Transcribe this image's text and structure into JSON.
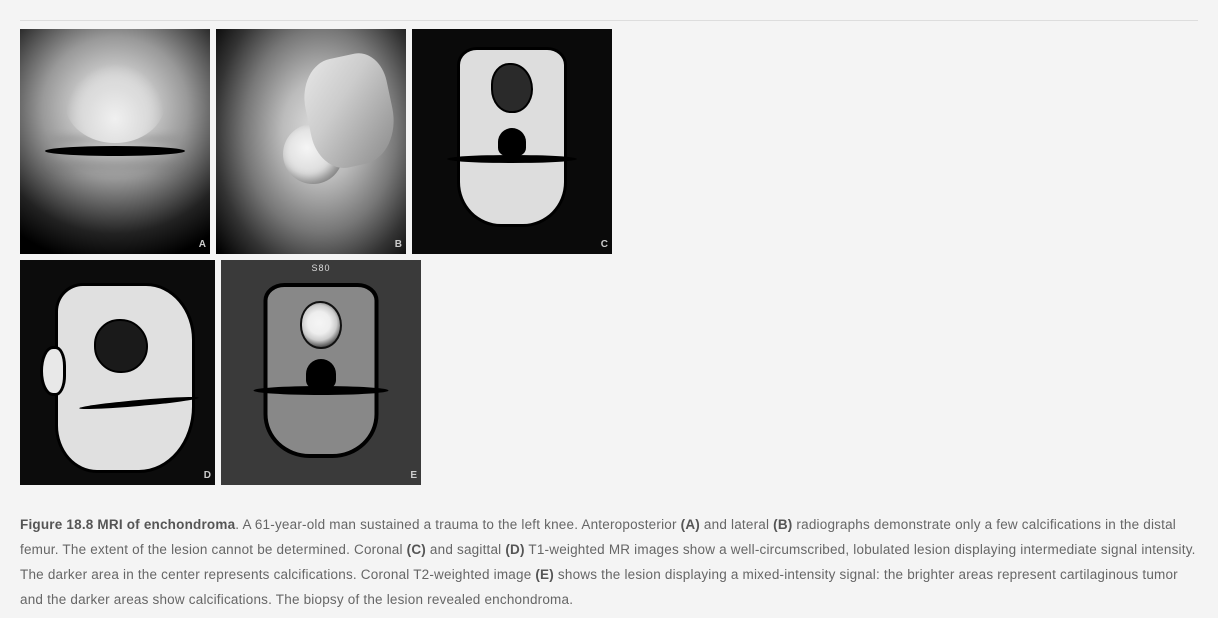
{
  "figure": {
    "title_bold": "Figure 18.8 MRI of enchondroma",
    "panels": {
      "a": {
        "label": "A"
      },
      "b": {
        "label": "B"
      },
      "c": {
        "label": "C"
      },
      "d": {
        "label": "D"
      },
      "e": {
        "label": "E",
        "topText": "S80"
      }
    },
    "caption": {
      "s1a": ". A 61-year-old man sustained a trauma to the left knee. Anteroposterior ",
      "bA": "(A)",
      "s1b": " and lateral ",
      "bB": "(B)",
      "s1c": " radiographs demonstrate only a few calcifications in the distal femur. The extent of the lesion cannot be determined. Coronal ",
      "bC": "(C)",
      "s1d": " and sagittal ",
      "bD": "(D)",
      "s1e": " T1-weighted MR images show a well-circumscribed, lobulated lesion displaying intermediate signal intensity. The darker area in the center represents calcifications. Coronal T2-weighted image ",
      "bE": "(E)",
      "s1f": " shows the lesion displaying a mixed-intensity signal: the brighter areas represent cartilaginous tumor and the darker areas show calcifications. The biopsy of the lesion revealed enchondroma."
    }
  },
  "style": {
    "background": "#f4f4f4",
    "textColor": "#666",
    "captionFontSize": 13.5
  }
}
